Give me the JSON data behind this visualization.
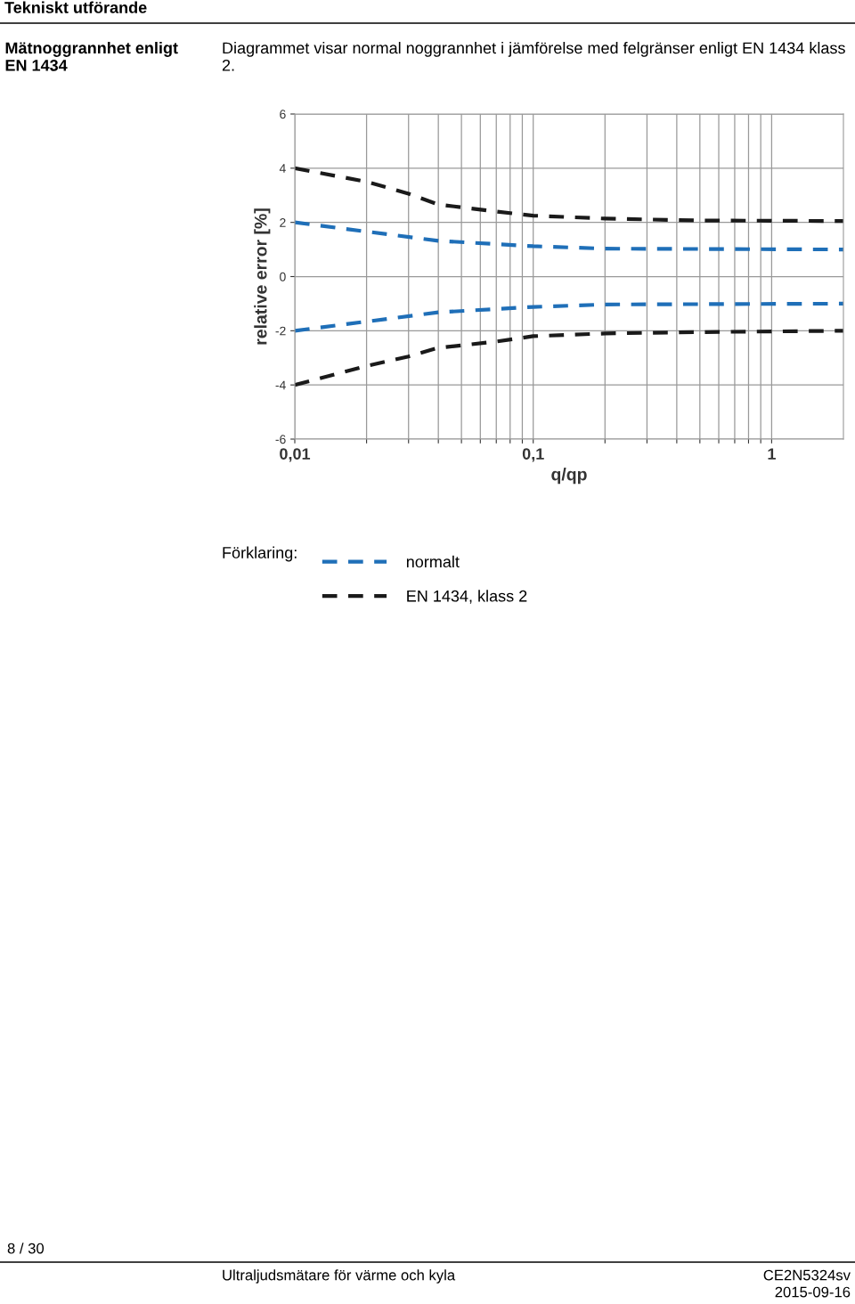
{
  "chart_data": {
    "type": "line",
    "title": "Mätnoggrannhet enligt EN 1434",
    "subtitle": "Diagrammet visar normal noggrannhet i jämförelse med felgränser enligt EN 1434 klass 2.",
    "xlabel": "q/qp",
    "ylabel": "relative error [%]",
    "legend_title": "Förklaring:",
    "annotations": [
      "Tekniskt utförande",
      "8 / 30",
      "Ultraljudsmätare för värme och kyla",
      "CE2N5324sv",
      "2015-09-16"
    ],
    "log": "x",
    "xlim": [
      0.01,
      2
    ],
    "ylim": [
      -6,
      6
    ],
    "xticks": [
      {
        "value": 0.01,
        "label": "0,01"
      },
      {
        "value": 0.02,
        "label": null
      },
      {
        "value": 0.03,
        "label": null
      },
      {
        "value": 0.04,
        "label": null
      },
      {
        "value": 0.05,
        "label": null
      },
      {
        "value": 0.06,
        "label": null
      },
      {
        "value": 0.07,
        "label": null
      },
      {
        "value": 0.08,
        "label": null
      },
      {
        "value": 0.09,
        "label": null
      },
      {
        "value": 0.1,
        "label": "0,1"
      },
      {
        "value": 0.2,
        "label": null
      },
      {
        "value": 0.3,
        "label": null
      },
      {
        "value": 0.4,
        "label": null
      },
      {
        "value": 0.5,
        "label": null
      },
      {
        "value": 0.6,
        "label": null
      },
      {
        "value": 0.7,
        "label": null
      },
      {
        "value": 0.8,
        "label": null
      },
      {
        "value": 0.9,
        "label": null
      },
      {
        "value": 1,
        "label": "1"
      }
    ],
    "yticks": [
      -6,
      -4,
      -2,
      0,
      2,
      4,
      6
    ],
    "grid": true,
    "legend": "bottom",
    "line_style": "dashed",
    "marker": "none",
    "series": [
      {
        "name": "EN 1434, klass 2",
        "color": "#1a1a1a",
        "x": [
          0.01,
          0.02,
          0.03,
          0.04,
          0.07,
          0.1,
          0.2,
          0.5,
          2
        ],
        "values": [
          4.0,
          3.5,
          3.06,
          2.66,
          2.4,
          2.25,
          2.14,
          2.07,
          2.05
        ]
      },
      {
        "color": "#1a1a1a",
        "x": [
          0.01,
          0.02,
          0.03,
          0.04,
          0.07,
          0.1,
          0.2,
          0.5,
          2
        ],
        "values": [
          -4.0,
          -3.3,
          -2.95,
          -2.63,
          -2.4,
          -2.2,
          -2.1,
          -2.05,
          -2.0
        ]
      },
      {
        "name": "normalt",
        "color": "#1f6fb8",
        "x": [
          0.01,
          0.04,
          0.1,
          0.2,
          2
        ],
        "values": [
          2.0,
          1.32,
          1.12,
          1.03,
          1.0
        ]
      },
      {
        "color": "#1f6fb8",
        "x": [
          0.01,
          0.04,
          0.1,
          0.2,
          2
        ],
        "values": [
          -2.0,
          -1.32,
          -1.12,
          -1.03,
          -1.0
        ]
      }
    ]
  }
}
